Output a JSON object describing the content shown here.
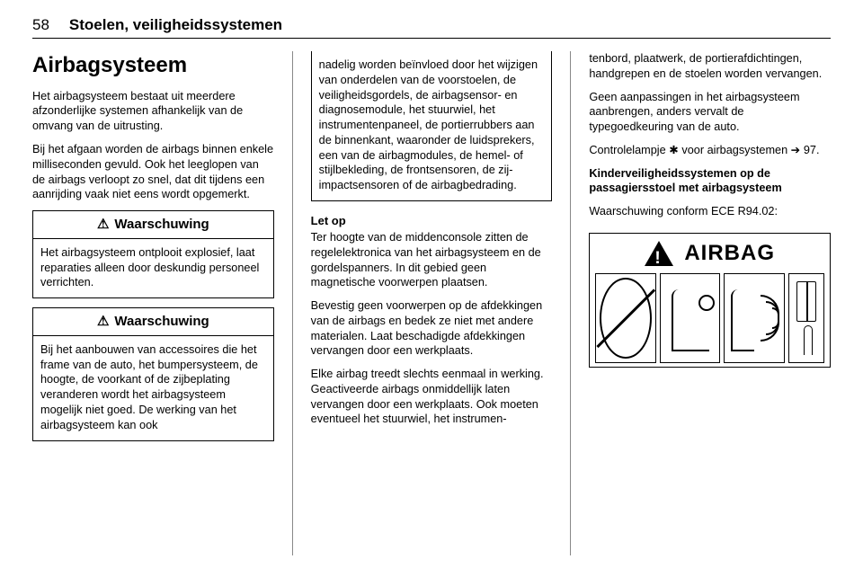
{
  "colors": {
    "text": "#000000",
    "background": "#ffffff",
    "rule": "#888888"
  },
  "header": {
    "page_number": "58",
    "chapter_title": "Stoelen, veiligheidssystemen"
  },
  "col1": {
    "title": "Airbagsysteem",
    "p1": "Het airbagsysteem bestaat uit meerdere afzonderlijke systemen afhankelijk van de omvang van de uitrusting.",
    "p2": "Bij het afgaan worden de airbags binnen enkele milliseconden gevuld. Ook het leeglopen van de airbags verloopt zo snel, dat dit tijdens een aanrijding vaak niet eens wordt opgemerkt.",
    "warn1": {
      "icon": "⚠",
      "heading": "Waarschuwing",
      "body": "Het airbagsysteem ontplooit explosief, laat reparaties alleen door deskundig personeel verrichten."
    },
    "warn2": {
      "icon": "⚠",
      "heading": "Waarschuwing",
      "body_start": "Bij het aanbouwen van accessoires die het frame van de auto, het bumpersysteem, de hoogte, de voorkant of de zijbeplating veranderen wordt het airbagsysteem mogelijk niet goed. De werking van het airbagsysteem kan ook"
    }
  },
  "col2": {
    "warn2_cont": "nadelig worden beïnvloed door het wijzigen van onderdelen van de voorstoelen, de veiligheidsgordels, de airbagsensor- en diagnosemodule, het stuurwiel, het instrumentenpaneel, de portierrubbers aan de binnenkant, waaronder de luidsprekers, een van de airbagmodules, de hemel- of stijlbekleding, de frontsensoren, de zij-impactsensoren of de airbagbedrading.",
    "letop_label": "Let op",
    "letop_body": "Ter hoogte van de middenconsole zitten de regelelektronica van het airbagsysteem en de gordelspanners. In dit gebied geen magnetische voorwerpen plaatsen.",
    "p3": "Bevestig geen voorwerpen op de afdekkingen van de airbags en bedek ze niet met andere materialen. Laat beschadigde afdekkingen vervangen door een werkplaats.",
    "p4_start": "Elke airbag treedt slechts eenmaal in werking. Geactiveerde airbags onmiddellijk laten vervangen door een werkplaats. Ook moeten eventueel het stuurwiel, het instrumen-"
  },
  "col3": {
    "p4_end": "tenbord, plaatwerk, de portierafdichtingen, handgrepen en de stoelen worden vervangen.",
    "p5": "Geen aanpassingen in het airbagsysteem aanbrengen, anders vervalt de typegoedkeuring van de auto.",
    "p6_a": "Controlelampje ",
    "p6_sym": "✱",
    "p6_b": " voor airbagsystemen ",
    "p6_ref_sym": "➔",
    "p6_ref_num": " 97.",
    "heading2": "Kinderveiligheidssystemen op de passagiersstoel met airbagsysteem",
    "p7": "Waarschuwing conform ECE R94.02:",
    "diagram": {
      "warning_icon": "!",
      "label": "AIRBAG",
      "panels": [
        "no-child-seat",
        "seat-forward",
        "airbag-waves",
        "manual-book"
      ]
    }
  }
}
